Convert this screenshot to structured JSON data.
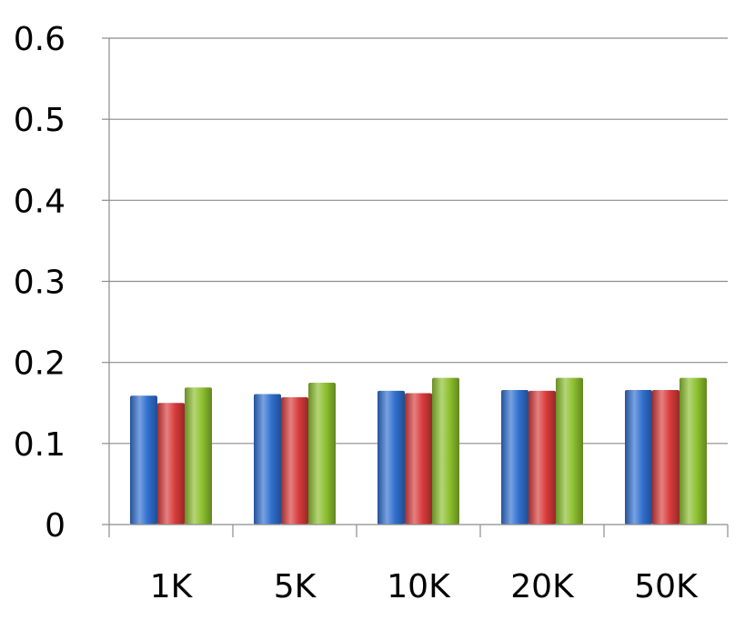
{
  "chart_data": {
    "type": "bar",
    "title": "",
    "xlabel": "",
    "ylabel": "",
    "categories": [
      "1K",
      "5K",
      "10K",
      "20K",
      "50K"
    ],
    "yticks": [
      "0",
      "0.1",
      "0.2",
      "0.3",
      "0.4",
      "0.5",
      "0.6"
    ],
    "ylim": [
      0,
      0.6
    ],
    "grid": true,
    "legend": "none",
    "series": [
      {
        "color": "#2f6fcf",
        "values": [
          0.159,
          0.161,
          0.165,
          0.166,
          0.166
        ]
      },
      {
        "color": "#d83b3b",
        "values": [
          0.15,
          0.157,
          0.162,
          0.165,
          0.166
        ]
      },
      {
        "color": "#8cbf2e",
        "values": [
          0.169,
          0.175,
          0.181,
          0.181,
          0.181
        ]
      }
    ]
  }
}
